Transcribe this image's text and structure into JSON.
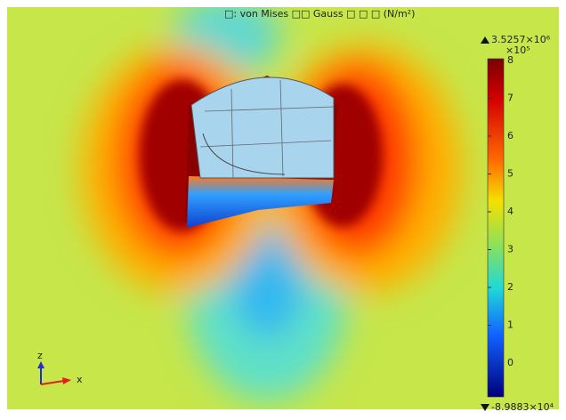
{
  "title": "□: von Mises □□ Gauss □ □ □ (N/m²)",
  "colorbar": {
    "max_label": "3.5257×10⁶",
    "multiplier": "×10⁵",
    "ticks": [
      8,
      7,
      6,
      5,
      4,
      3,
      2,
      1,
      0
    ],
    "min_label": "-8.9883×10⁴"
  },
  "triad": {
    "z": "z",
    "x": "x"
  }
}
